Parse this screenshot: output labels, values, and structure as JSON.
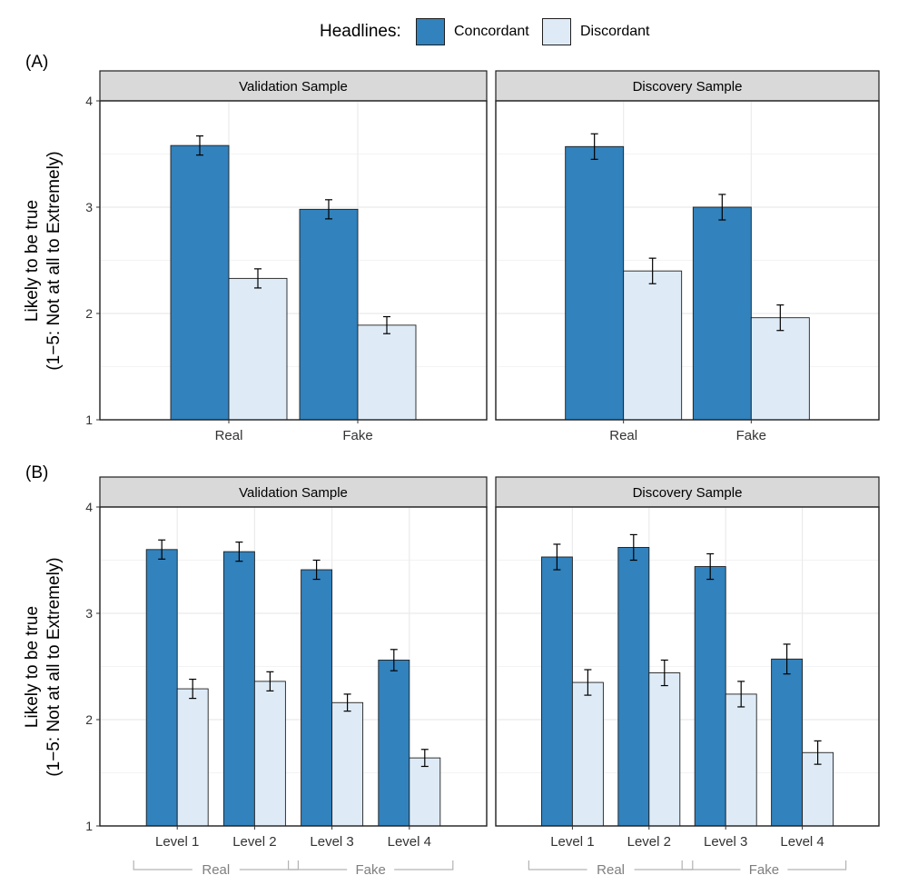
{
  "legend": {
    "title": "Headlines:",
    "items": [
      {
        "label": "Concordant",
        "color": "#3182bd"
      },
      {
        "label": "Discordant",
        "color": "#deebf7"
      }
    ]
  },
  "panel_labels": {
    "a": "(A)",
    "b": "(B)"
  },
  "ylabel": {
    "line1": "Likely to be true",
    "line2": "(1−5: Not at all to Extremely)"
  },
  "colors": {
    "concordant": "#3182bd",
    "discordant": "#deebf7",
    "strip": "#d9d9d9",
    "grid": "#ebebeb",
    "bracket": "#b3b3b3",
    "bracket_text": "#7f7f7f"
  },
  "chart_data": [
    {
      "type": "bar",
      "row": "A",
      "title": "Validation Sample",
      "categories": [
        "Real",
        "Fake"
      ],
      "ylim": [
        1,
        4
      ],
      "yticks": [
        1,
        2,
        3,
        4
      ],
      "series": [
        {
          "name": "Concordant",
          "values": [
            3.58,
            2.98
          ],
          "errors": [
            0.09,
            0.09
          ]
        },
        {
          "name": "Discordant",
          "values": [
            2.33,
            1.89
          ],
          "errors": [
            0.09,
            0.08
          ]
        }
      ]
    },
    {
      "type": "bar",
      "row": "A",
      "title": "Discovery Sample",
      "categories": [
        "Real",
        "Fake"
      ],
      "ylim": [
        1,
        4
      ],
      "yticks": [
        1,
        2,
        3,
        4
      ],
      "series": [
        {
          "name": "Concordant",
          "values": [
            3.57,
            3.0
          ],
          "errors": [
            0.12,
            0.12
          ]
        },
        {
          "name": "Discordant",
          "values": [
            2.4,
            1.96
          ],
          "errors": [
            0.12,
            0.12
          ]
        }
      ]
    },
    {
      "type": "bar",
      "row": "B",
      "title": "Validation Sample",
      "categories": [
        "Level 1",
        "Level 2",
        "Level 3",
        "Level 4"
      ],
      "groups": [
        {
          "label": "Real",
          "span": [
            0,
            1
          ]
        },
        {
          "label": "Fake",
          "span": [
            2,
            3
          ]
        }
      ],
      "ylim": [
        1,
        4
      ],
      "yticks": [
        1,
        2,
        3,
        4
      ],
      "series": [
        {
          "name": "Concordant",
          "values": [
            3.6,
            3.58,
            3.41,
            2.56
          ],
          "errors": [
            0.09,
            0.09,
            0.09,
            0.1
          ]
        },
        {
          "name": "Discordant",
          "values": [
            2.29,
            2.36,
            2.16,
            1.64
          ],
          "errors": [
            0.09,
            0.09,
            0.08,
            0.08
          ]
        }
      ]
    },
    {
      "type": "bar",
      "row": "B",
      "title": "Discovery Sample",
      "categories": [
        "Level 1",
        "Level 2",
        "Level 3",
        "Level 4"
      ],
      "groups": [
        {
          "label": "Real",
          "span": [
            0,
            1
          ]
        },
        {
          "label": "Fake",
          "span": [
            2,
            3
          ]
        }
      ],
      "ylim": [
        1,
        4
      ],
      "yticks": [
        1,
        2,
        3,
        4
      ],
      "series": [
        {
          "name": "Concordant",
          "values": [
            3.53,
            3.62,
            3.44,
            2.57
          ],
          "errors": [
            0.12,
            0.12,
            0.12,
            0.14
          ]
        },
        {
          "name": "Discordant",
          "values": [
            2.35,
            2.44,
            2.24,
            1.69
          ],
          "errors": [
            0.12,
            0.12,
            0.12,
            0.11
          ]
        }
      ]
    }
  ]
}
